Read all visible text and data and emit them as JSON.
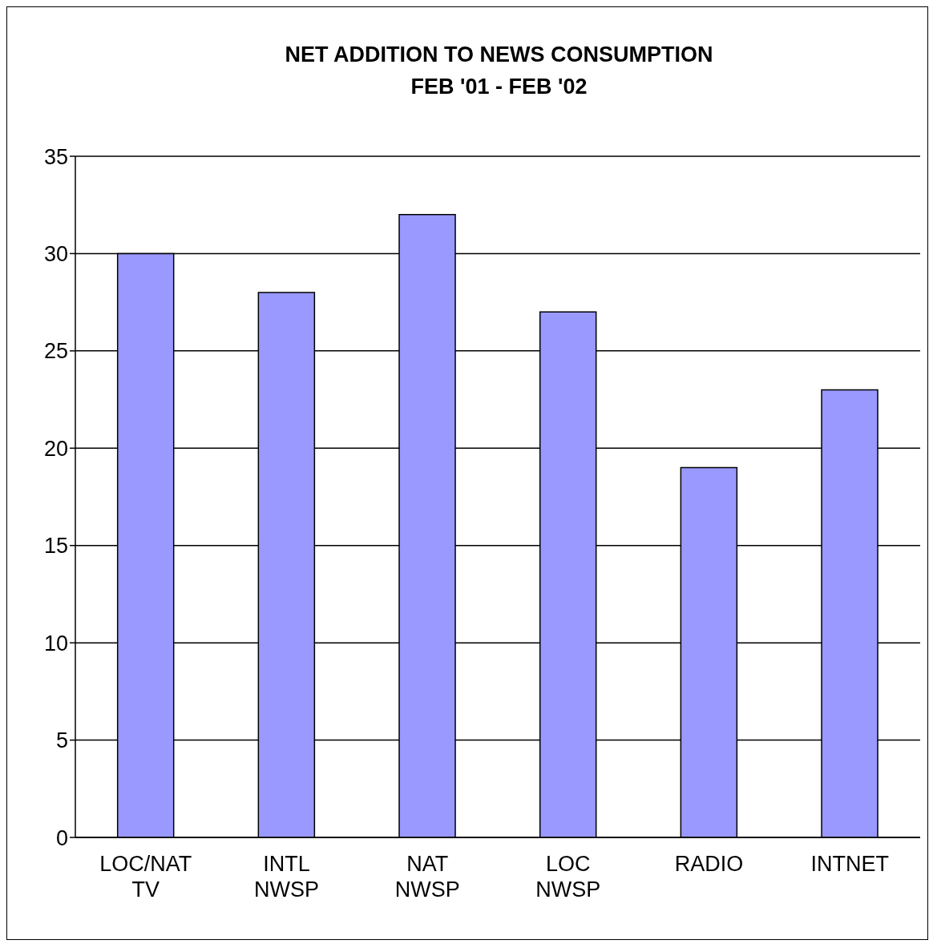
{
  "chart_data": {
    "type": "bar",
    "title": "NET ADDITION TO NEWS CONSUMPTION",
    "subtitle": "FEB '01 - FEB '02",
    "categories": [
      "LOC/NAT TV",
      "INTL NWSP",
      "NAT NWSP",
      "LOC NWSP",
      "RADIO",
      "INTNET"
    ],
    "values": [
      30,
      28,
      32,
      27,
      19,
      23
    ],
    "color": "#9999ff",
    "ylim": [
      0,
      35
    ],
    "yticks": [
      0,
      5,
      10,
      15,
      20,
      25,
      30,
      35
    ],
    "grid": "y",
    "legend": false
  }
}
